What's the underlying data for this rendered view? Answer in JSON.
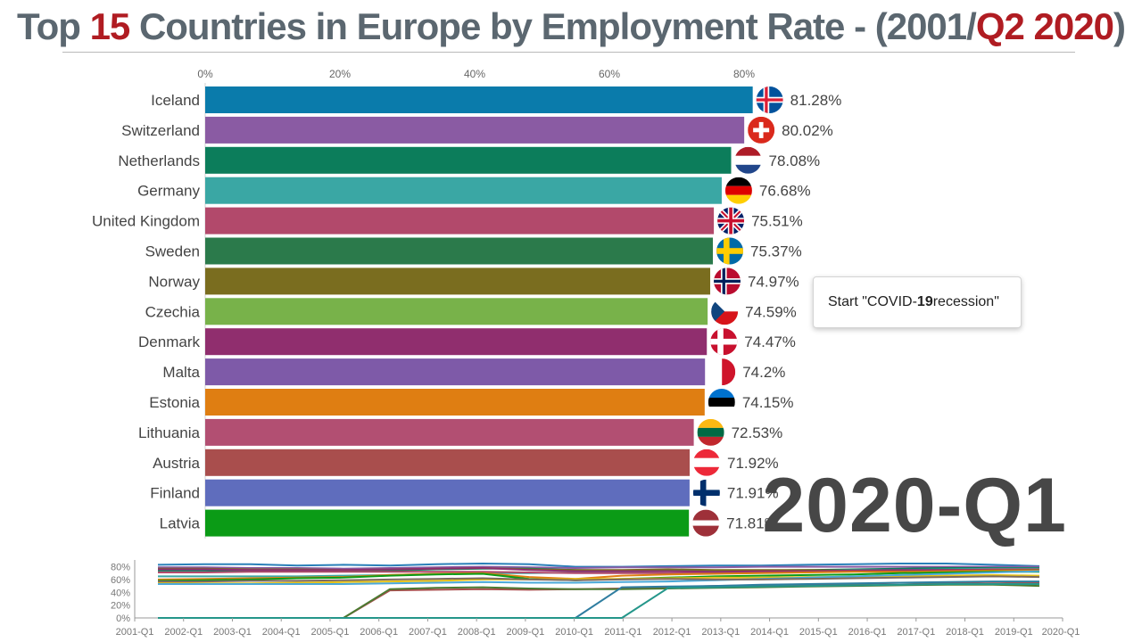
{
  "title": {
    "part1": "Top ",
    "count": "15",
    "part2": " Countries in Europe by Employment Rate - (2001/",
    "current": "Q2 2020",
    "part3": ")"
  },
  "period_label": "2020-Q1",
  "annotation": {
    "prefix": "Start \"COVID-",
    "bold": "19",
    "suffix": " recession\""
  },
  "chart_data": [
    {
      "type": "bar",
      "orientation": "horizontal",
      "title": "Top 15 Countries in Europe by Employment Rate - (2001/Q2 2020)",
      "period": "2020-Q1",
      "xlim": [
        0,
        100
      ],
      "x_ticks": [
        "0%",
        "20%",
        "40%",
        "60%",
        "80%"
      ],
      "grid": false,
      "categories": [
        "Iceland",
        "Switzerland",
        "Netherlands",
        "Germany",
        "United Kingdom",
        "Sweden",
        "Norway",
        "Czechia",
        "Denmark",
        "Malta",
        "Estonia",
        "Lithuania",
        "Austria",
        "Finland",
        "Latvia"
      ],
      "values": [
        81.28,
        80.02,
        78.08,
        76.68,
        75.51,
        75.37,
        74.97,
        74.59,
        74.47,
        74.2,
        74.15,
        72.53,
        71.92,
        71.91,
        71.81
      ],
      "value_labels": [
        "81.28%",
        "80.02%",
        "78.08%",
        "76.68%",
        "75.51%",
        "75.37%",
        "74.97%",
        "74.59%",
        "74.47%",
        "74.2%",
        "74.15%",
        "72.53%",
        "71.92%",
        "71.91%",
        "71.81%"
      ],
      "bar_colors": [
        "#0a7bab",
        "#8a5ba3",
        "#0c7d5b",
        "#3aa7a4",
        "#b2496b",
        "#2b7a4b",
        "#7a6d1f",
        "#78b24a",
        "#902e6e",
        "#7e5aa8",
        "#df7e12",
        "#b24f72",
        "#a94e4d",
        "#5f6dbd",
        "#0b9b16"
      ],
      "flags": [
        "flag-iceland-icon",
        "flag-switzerland-icon",
        "flag-netherlands-icon",
        "flag-germany-icon",
        "flag-united-kingdom-icon",
        "flag-sweden-icon",
        "flag-norway-icon",
        "flag-czechia-icon",
        "flag-denmark-icon",
        "flag-malta-icon",
        "flag-estonia-icon",
        "flag-lithuania-icon",
        "flag-austria-icon",
        "flag-finland-icon",
        "flag-latvia-icon"
      ]
    },
    {
      "type": "line",
      "role": "timeline-overview",
      "x_ticks": [
        "2001-Q1",
        "2002-Q1",
        "2003-Q1",
        "2004-Q1",
        "2005-Q1",
        "2006-Q1",
        "2007-Q1",
        "2008-Q1",
        "2009-Q1",
        "2010-Q1",
        "2011-Q1",
        "2012-Q1",
        "2013-Q1",
        "2014-Q1",
        "2015-Q1",
        "2016-Q1",
        "2017-Q1",
        "2018-Q1",
        "2019-Q1",
        "2020-Q1"
      ],
      "y_ticks": [
        "80%",
        "60%",
        "40%",
        "20%",
        "0%"
      ],
      "ylim": [
        0,
        85
      ],
      "series": [
        {
          "color": "#2a80b9",
          "values": [
            83,
            84,
            84,
            82,
            83,
            82,
            84,
            85,
            84,
            80,
            80,
            81,
            82,
            82,
            83,
            84,
            85,
            85,
            83,
            81
          ]
        },
        {
          "color": "#8a5ba3",
          "values": [
            79,
            79,
            78,
            78,
            77,
            78,
            79,
            80,
            79,
            78,
            79,
            79,
            79,
            80,
            80,
            80,
            80,
            80,
            80,
            80
          ]
        },
        {
          "color": "#0c7d5b",
          "values": [
            74,
            74,
            73,
            73,
            73,
            74,
            76,
            77,
            77,
            75,
            74,
            75,
            74,
            74,
            75,
            76,
            77,
            78,
            78,
            78
          ]
        },
        {
          "color": "#3aa7a4",
          "values": [
            65,
            65,
            65,
            65,
            66,
            67,
            69,
            70,
            70,
            71,
            72,
            73,
            73,
            74,
            74,
            75,
            75,
            76,
            77,
            77
          ]
        },
        {
          "color": "#b2496b",
          "values": [
            71,
            71,
            72,
            72,
            72,
            72,
            72,
            72,
            71,
            70,
            70,
            70,
            71,
            72,
            73,
            74,
            74,
            75,
            76,
            76
          ]
        },
        {
          "color": "#7a6d1f",
          "values": [
            77,
            77,
            76,
            76,
            75,
            76,
            77,
            78,
            76,
            75,
            75,
            76,
            75,
            75,
            75,
            74,
            74,
            75,
            75,
            75
          ]
        },
        {
          "color": "#902e6e",
          "values": [
            76,
            76,
            75,
            75,
            75,
            76,
            77,
            78,
            75,
            73,
            73,
            73,
            72,
            73,
            73,
            74,
            75,
            75,
            75,
            74
          ]
        },
        {
          "color": "#df7e12",
          "values": [
            60,
            61,
            62,
            63,
            64,
            67,
            69,
            70,
            64,
            61,
            66,
            68,
            69,
            70,
            71,
            72,
            72,
            73,
            74,
            74
          ]
        },
        {
          "color": "#0b9b16",
          "values": [
            58,
            59,
            60,
            62,
            63,
            66,
            68,
            69,
            61,
            59,
            61,
            63,
            65,
            66,
            67,
            68,
            70,
            71,
            72,
            72
          ]
        },
        {
          "color": "#e5c017",
          "values": [
            55,
            54,
            54,
            55,
            56,
            57,
            58,
            60,
            60,
            61,
            61,
            62,
            63,
            63,
            64,
            64,
            65,
            66,
            67,
            66
          ]
        },
        {
          "color": "#4aa8d8",
          "values": [
            53,
            53,
            53,
            53,
            53,
            54,
            55,
            56,
            55,
            55,
            56,
            57,
            59,
            61,
            63,
            65,
            67,
            69,
            71,
            73
          ]
        },
        {
          "color": "#7c6a5e",
          "values": [
            57,
            57,
            58,
            58,
            59,
            60,
            61,
            62,
            60,
            59,
            60,
            61,
            60,
            60,
            61,
            62,
            63,
            64,
            65,
            64
          ]
        },
        {
          "color": "#a94e4d",
          "values": [
            0,
            0,
            0,
            0,
            0,
            43,
            44,
            45,
            44,
            45,
            46,
            48,
            50,
            51,
            52,
            53,
            55,
            55,
            56,
            55
          ]
        },
        {
          "color": "#4b7a31",
          "values": [
            0,
            0,
            0,
            0,
            0,
            45,
            47,
            48,
            46,
            45,
            45,
            46,
            47,
            48,
            49,
            50,
            51,
            52,
            52,
            50
          ]
        },
        {
          "color": "#2f7da0",
          "values": [
            0,
            0,
            0,
            0,
            0,
            0,
            0,
            0,
            0,
            0,
            48,
            49,
            50,
            52,
            53,
            54,
            55,
            56,
            57,
            57
          ]
        },
        {
          "color": "#24968a",
          "values": [
            0,
            0,
            0,
            0,
            0,
            0,
            0,
            0,
            0,
            0,
            0,
            47,
            48,
            49,
            50,
            51,
            52,
            53,
            53,
            53
          ]
        }
      ]
    }
  ]
}
